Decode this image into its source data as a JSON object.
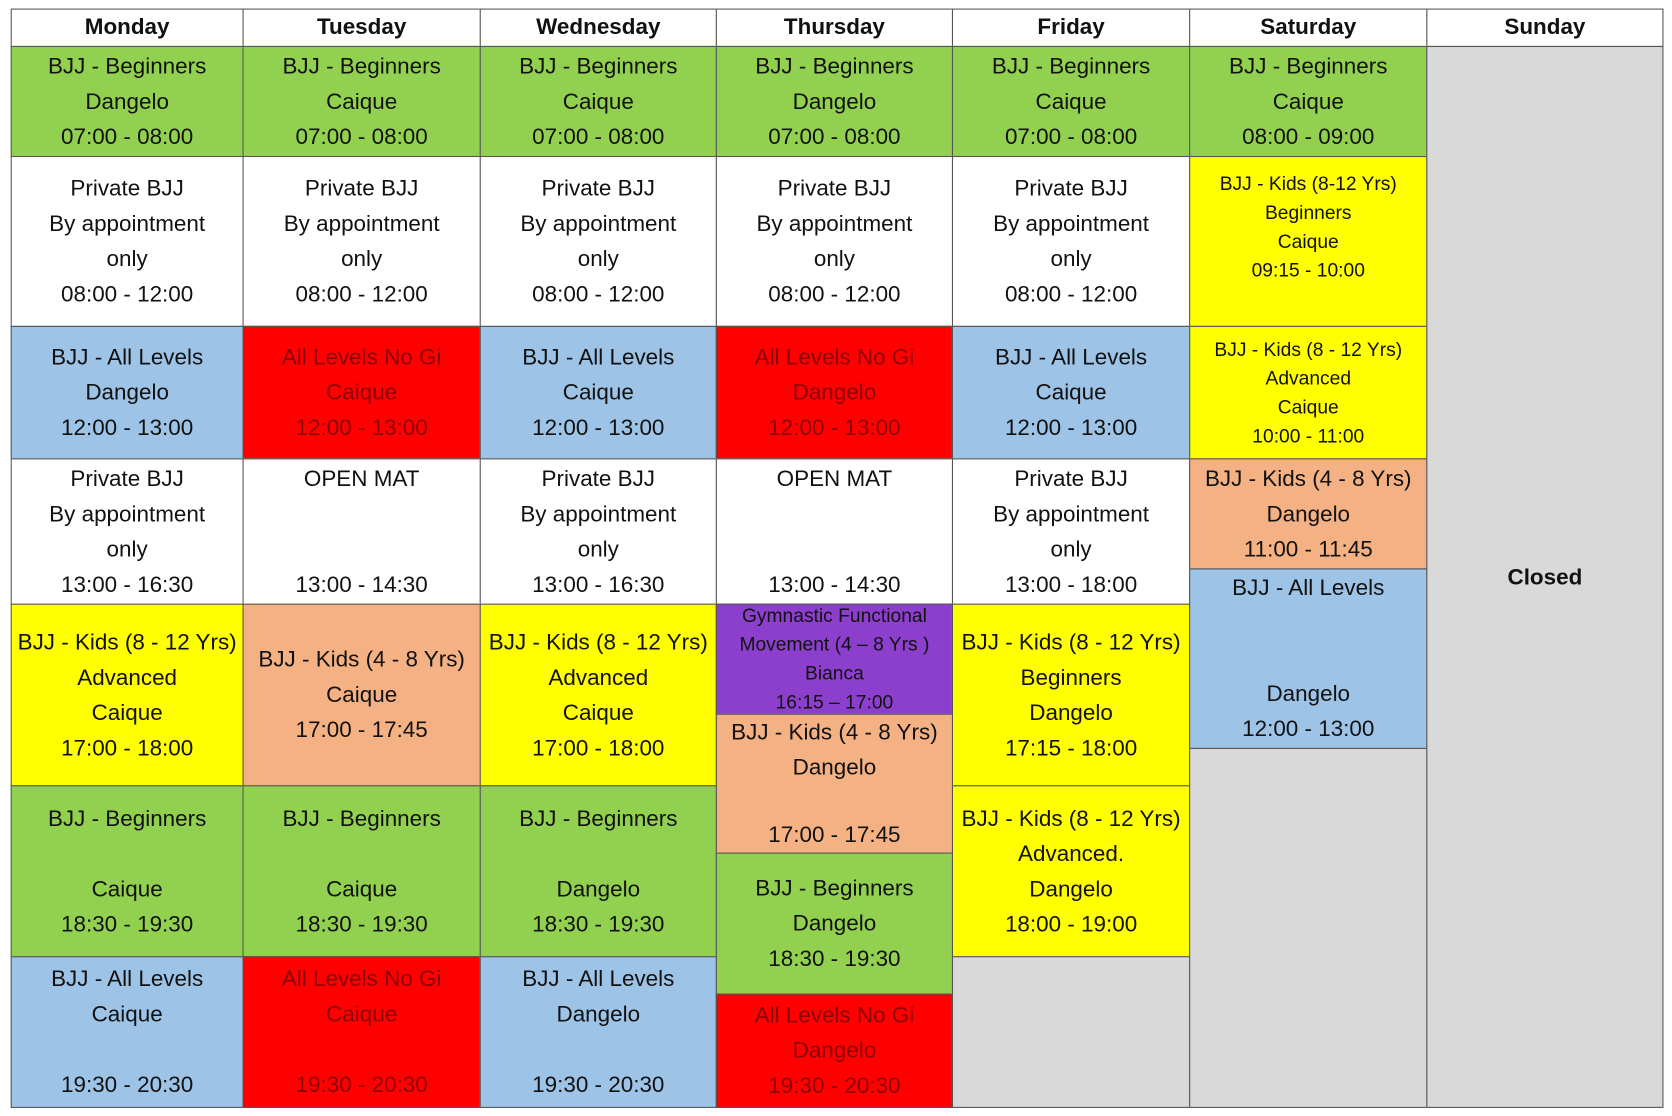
{
  "colors": {
    "green": "#92d050",
    "white": "#ffffff",
    "blue": "#9dc3e6",
    "red": "#ff0000",
    "yellow": "#ffff00",
    "salmon": "#f4b183",
    "purple": "#8c3fcc",
    "grey": "#d9d9d9"
  },
  "days": [
    {
      "name": "Monday",
      "cells": [
        {
          "color": "green",
          "lines": [
            "BJJ - Beginners",
            "Dangelo",
            "07:00 - 08:00"
          ]
        },
        {
          "color": "white",
          "lines": [
            "Private BJJ",
            "By appointment",
            "only",
            "08:00 - 12:00"
          ]
        },
        {
          "color": "blue",
          "lines": [
            "BJJ - All Levels",
            "Dangelo",
            "12:00 - 13:00"
          ]
        },
        {
          "color": "white",
          "lines": [
            "Private BJJ",
            "By appointment",
            "only",
            "13:00 - 16:30"
          ]
        },
        {
          "color": "yellow",
          "lines": [
            "BJJ - Kids (8 - 12 Yrs)",
            "Advanced",
            "Caique",
            "17:00 - 18:00"
          ]
        },
        {
          "color": "green",
          "lines": [
            "BJJ - Beginners",
            "",
            "Caique",
            "18:30 - 19:30"
          ]
        },
        {
          "color": "blue",
          "lines": [
            "BJJ - All Levels",
            "Caique",
            "",
            "19:30 - 20:30"
          ]
        }
      ]
    },
    {
      "name": "Tuesday",
      "cells": [
        {
          "color": "green",
          "lines": [
            "BJJ - Beginners",
            "Caique",
            "07:00 - 08:00"
          ]
        },
        {
          "color": "white",
          "lines": [
            "Private BJJ",
            "By appointment",
            "only",
            "08:00 - 12:00"
          ]
        },
        {
          "color": "red",
          "lines": [
            "All Levels No Gi",
            "Caique",
            "12:00 - 13:00"
          ]
        },
        {
          "color": "white",
          "lines": [
            "OPEN MAT",
            "",
            "",
            "13:00 - 14:30"
          ]
        },
        {
          "color": "salmon",
          "lines": [
            "BJJ - Kids (4 - 8 Yrs)",
            "Caique",
            "17:00 - 17:45"
          ]
        },
        {
          "color": "green",
          "lines": [
            "BJJ - Beginners",
            "",
            "Caique",
            "18:30 - 19:30"
          ]
        },
        {
          "color": "red",
          "lines": [
            "All Levels No Gi",
            "Caique",
            "",
            "19:30 - 20:30"
          ]
        }
      ]
    },
    {
      "name": "Wednesday",
      "cells": [
        {
          "color": "green",
          "lines": [
            "BJJ - Beginners",
            "Caique",
            "07:00 - 08:00"
          ]
        },
        {
          "color": "white",
          "lines": [
            "Private BJJ",
            "By appointment",
            "only",
            "08:00 - 12:00"
          ]
        },
        {
          "color": "blue",
          "lines": [
            "BJJ - All Levels",
            "Caique",
            "12:00 - 13:00"
          ]
        },
        {
          "color": "white",
          "lines": [
            "Private BJJ",
            "By appointment",
            "only",
            "13:00 - 16:30"
          ]
        },
        {
          "color": "yellow",
          "lines": [
            "BJJ - Kids (8 - 12 Yrs)",
            "Advanced",
            "Caique",
            "17:00 - 18:00"
          ]
        },
        {
          "color": "green",
          "lines": [
            "BJJ - Beginners",
            "",
            "Dangelo",
            "18:30 - 19:30"
          ]
        },
        {
          "color": "blue",
          "lines": [
            "BJJ - All Levels",
            "Dangelo",
            "",
            "19:30 - 20:30"
          ]
        }
      ]
    },
    {
      "name": "Thursday",
      "cells": [
        {
          "color": "green",
          "lines": [
            "BJJ - Beginners",
            "Dangelo",
            "07:00 - 08:00"
          ]
        },
        {
          "color": "white",
          "lines": [
            "Private BJJ",
            "By appointment",
            "only",
            "08:00 - 12:00"
          ]
        },
        {
          "color": "red",
          "lines": [
            "All Levels No Gi",
            "Dangelo",
            "12:00 - 13:00"
          ]
        },
        {
          "color": "white",
          "lines": [
            "OPEN MAT",
            "",
            "",
            "13:00 - 14:30"
          ]
        },
        {
          "color": "purple",
          "small": true,
          "lines": [
            "Gymnastic Functional",
            "Movement (4 – 8 Yrs )",
            "Bianca",
            "16:15 – 17:00"
          ]
        },
        {
          "color": "salmon",
          "lines": [
            "BJJ - Kids (4 - 8 Yrs)",
            "Dangelo",
            "",
            "17:00 - 17:45"
          ]
        },
        {
          "color": "green",
          "lines": [
            "BJJ - Beginners",
            "Dangelo",
            "18:30 - 19:30"
          ]
        },
        {
          "color": "red",
          "lines": [
            "All Levels No Gi",
            "Dangelo",
            "19:30 - 20:30"
          ]
        }
      ]
    },
    {
      "name": "Friday",
      "cells": [
        {
          "color": "green",
          "lines": [
            "BJJ - Beginners",
            "Caique",
            "07:00 - 08:00"
          ]
        },
        {
          "color": "white",
          "lines": [
            "Private BJJ",
            "By appointment",
            "only",
            "08:00 - 12:00"
          ]
        },
        {
          "color": "blue",
          "lines": [
            "BJJ - All Levels",
            "Caique",
            "12:00 - 13:00"
          ]
        },
        {
          "color": "white",
          "lines": [
            "Private BJJ",
            "By appointment",
            "only",
            "13:00 - 18:00"
          ]
        },
        {
          "color": "yellow",
          "lines": [
            "BJJ - Kids (8 - 12 Yrs)",
            "Beginners",
            "Dangelo",
            "17:15 - 18:00"
          ]
        },
        {
          "color": "yellow",
          "lines": [
            "BJJ - Kids (8 - 12 Yrs)",
            "Advanced.",
            "Dangelo",
            "18:00 - 19:00"
          ]
        },
        {
          "color": "grey",
          "lines": []
        }
      ]
    },
    {
      "name": "Saturday",
      "cells": [
        {
          "color": "green",
          "lines": [
            "BJJ - Beginners",
            "Caique",
            "08:00 - 09:00"
          ]
        },
        {
          "color": "yellow",
          "lines": [
            "BJJ - Kids (8-12 Yrs)",
            "Beginners",
            "Caique",
            "09:15 - 10:00",
            ""
          ]
        },
        {
          "color": "yellow",
          "lines": [
            "BJJ - Kids (8 - 12 Yrs)",
            "Advanced",
            "Caique",
            "10:00 - 11:00"
          ]
        },
        {
          "color": "salmon",
          "lines": [
            "BJJ - Kids (4 - 8 Yrs)",
            "Dangelo",
            "11:00 - 11:45"
          ]
        },
        {
          "color": "blue",
          "lines": [
            "BJJ - All Levels",
            "",
            "",
            "Dangelo",
            "12:00 - 13:00"
          ]
        },
        {
          "color": "grey",
          "lines": []
        }
      ]
    },
    {
      "name": "Sunday",
      "cells": [
        {
          "color": "grey",
          "closed": true,
          "lines": [
            "Closed"
          ]
        }
      ]
    }
  ]
}
